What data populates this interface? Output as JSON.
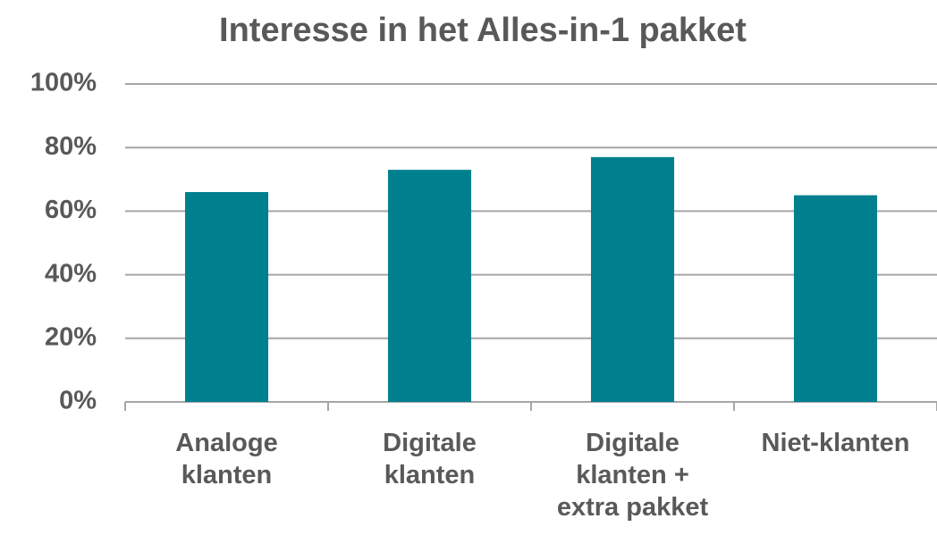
{
  "chart_data": {
    "type": "bar",
    "title": "Interesse in het Alles-in-1 pakket",
    "categories": [
      "Analoge\nklanten",
      "Digitale\nklanten",
      "Digitale\nklanten +\nextra pakket",
      "Niet-klanten"
    ],
    "values": [
      66,
      73,
      77,
      65
    ],
    "color": "#00808f",
    "ylim": [
      0,
      100
    ],
    "yticks": [
      {
        "value": 0,
        "label": "0%"
      },
      {
        "value": 20,
        "label": "20%"
      },
      {
        "value": 40,
        "label": "40%"
      },
      {
        "value": 60,
        "label": "60%"
      },
      {
        "value": 80,
        "label": "80%"
      },
      {
        "value": 100,
        "label": "100%"
      }
    ],
    "grid": true
  }
}
